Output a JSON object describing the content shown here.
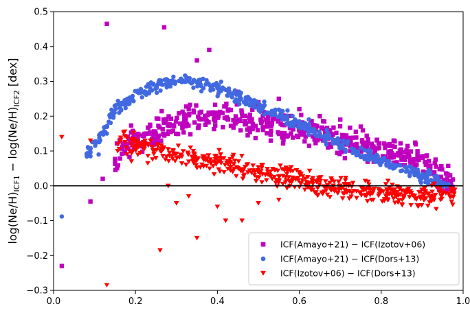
{
  "chart_data": {
    "type": "scatter",
    "title": "",
    "xlabel": "",
    "ylabel": {
      "part1": "log(Ne/H)",
      "sub1": "ICF1",
      "minus": " − ",
      "part2": "log(Ne/H)",
      "sub2": "ICF2",
      "unit": " [dex]"
    },
    "xlim": [
      0.0,
      1.0
    ],
    "ylim": [
      -0.3,
      0.5
    ],
    "xticks": [
      0.0,
      0.2,
      0.4,
      0.6,
      0.8,
      1.0
    ],
    "xtick_labels": [
      "0.0",
      "0.2",
      "0.4",
      "0.6",
      "0.8",
      "1.0"
    ],
    "yticks": [
      -0.3,
      -0.2,
      -0.1,
      0.0,
      0.1,
      0.2,
      0.3,
      0.4,
      0.5
    ],
    "ytick_labels": [
      "−0.3",
      "−0.2",
      "−0.1",
      "0.0",
      "0.1",
      "0.2",
      "0.3",
      "0.4",
      "0.5"
    ],
    "hline": 0.0,
    "legend": "lower right",
    "series": [
      {
        "name": "ICF(Amayo+21) − ICF(Izotov+06)",
        "marker": "square",
        "color": "#bf00bf",
        "trend": [
          [
            0.15,
            0.08
          ],
          [
            0.2,
            0.14
          ],
          [
            0.3,
            0.18
          ],
          [
            0.4,
            0.2
          ],
          [
            0.5,
            0.18
          ],
          [
            0.6,
            0.16
          ],
          [
            0.7,
            0.13
          ],
          [
            0.8,
            0.1
          ],
          [
            0.9,
            0.07
          ],
          [
            0.98,
            0.0
          ]
        ],
        "spread": 0.025,
        "extra_points": [
          [
            0.13,
            0.465
          ],
          [
            0.27,
            0.455
          ],
          [
            0.35,
            0.36
          ],
          [
            0.38,
            0.39
          ],
          [
            0.02,
            -0.23
          ],
          [
            0.09,
            -0.045
          ],
          [
            0.12,
            0.02
          ],
          [
            0.45,
            0.27
          ],
          [
            0.5,
            0.24
          ],
          [
            0.55,
            0.25
          ],
          [
            0.6,
            0.22
          ],
          [
            0.65,
            0.2
          ],
          [
            0.7,
            0.19
          ],
          [
            0.75,
            0.17
          ]
        ]
      },
      {
        "name": "ICF(Amayo+21) − ICF(Dors+13)",
        "marker": "circle",
        "color": "#4169e1",
        "trend": [
          [
            0.08,
            0.09
          ],
          [
            0.12,
            0.15
          ],
          [
            0.15,
            0.22
          ],
          [
            0.2,
            0.26
          ],
          [
            0.25,
            0.29
          ],
          [
            0.3,
            0.3
          ],
          [
            0.35,
            0.295
          ],
          [
            0.4,
            0.28
          ],
          [
            0.5,
            0.23
          ],
          [
            0.6,
            0.18
          ],
          [
            0.7,
            0.12
          ],
          [
            0.8,
            0.07
          ],
          [
            0.9,
            0.03
          ],
          [
            0.97,
            0.0
          ]
        ],
        "spread": 0.012,
        "extra_points": [
          [
            0.02,
            -0.088
          ],
          [
            0.09,
            0.085
          ],
          [
            0.11,
            0.09
          ],
          [
            0.13,
            0.15
          ],
          [
            0.16,
            0.21
          ],
          [
            0.18,
            0.25
          ],
          [
            0.22,
            0.27
          ]
        ]
      },
      {
        "name": "ICF(Izotov+06) − ICF(Dors+13)",
        "marker": "triangle-down",
        "color": "#ff0000",
        "trend": [
          [
            0.15,
            0.125
          ],
          [
            0.2,
            0.115
          ],
          [
            0.3,
            0.09
          ],
          [
            0.4,
            0.065
          ],
          [
            0.5,
            0.04
          ],
          [
            0.6,
            0.015
          ],
          [
            0.7,
            -0.005
          ],
          [
            0.8,
            -0.02
          ],
          [
            0.9,
            -0.03
          ],
          [
            0.98,
            -0.02
          ]
        ],
        "spread": 0.02,
        "extra_points": [
          [
            0.02,
            0.14
          ],
          [
            0.09,
            0.13
          ],
          [
            0.13,
            -0.285
          ],
          [
            0.26,
            -0.185
          ],
          [
            0.35,
            -0.15
          ],
          [
            0.23,
            0.065
          ],
          [
            0.25,
            0.08
          ],
          [
            0.28,
            0.0
          ],
          [
            0.3,
            -0.05
          ],
          [
            0.33,
            -0.03
          ],
          [
            0.4,
            -0.06
          ],
          [
            0.42,
            -0.1
          ],
          [
            0.46,
            -0.1
          ],
          [
            0.5,
            -0.05
          ],
          [
            0.55,
            -0.04
          ],
          [
            0.19,
            0.07
          ]
        ]
      }
    ]
  }
}
